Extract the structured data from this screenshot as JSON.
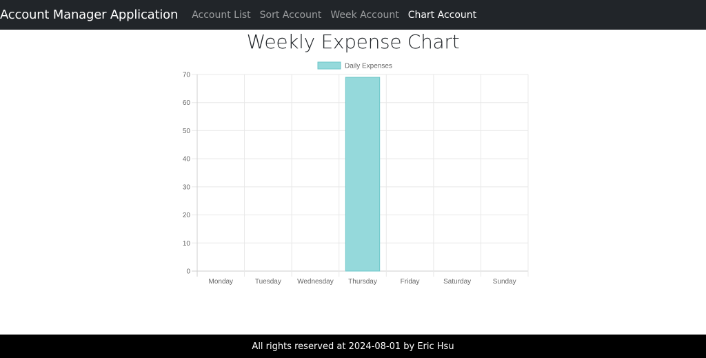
{
  "navbar": {
    "brand": "Account Manager Application",
    "links": [
      {
        "label": "Account List",
        "active": false
      },
      {
        "label": "Sort Account",
        "active": false
      },
      {
        "label": "Week Account",
        "active": false
      },
      {
        "label": "Chart Account",
        "active": true
      }
    ]
  },
  "page": {
    "title": "Weekly Expense Chart"
  },
  "chart_data": {
    "type": "bar",
    "categories": [
      "Monday",
      "Tuesday",
      "Wednesday",
      "Thursday",
      "Friday",
      "Saturday",
      "Sunday"
    ],
    "series": [
      {
        "name": "Daily Expenses",
        "values": [
          0,
          0,
          0,
          69,
          0,
          0,
          0
        ]
      }
    ],
    "ylim": [
      0,
      70
    ],
    "yticks": [
      0,
      10,
      20,
      30,
      40,
      50,
      60,
      70
    ],
    "grid": true,
    "legend_position": "top",
    "bar_fill": "#95d9db",
    "bar_stroke": "#6cc6c8"
  },
  "footer": {
    "text": "All rights reserved at 2024-08-01 by Eric Hsu"
  }
}
